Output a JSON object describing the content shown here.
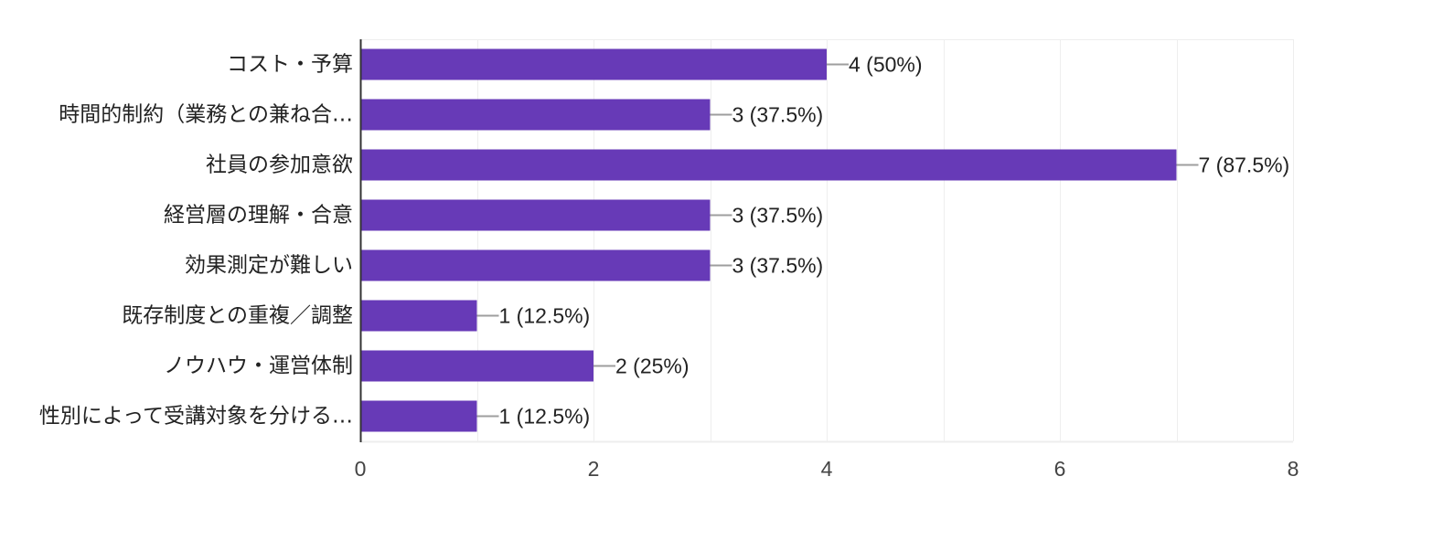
{
  "chart_data": {
    "type": "bar",
    "orientation": "horizontal",
    "title": "",
    "xlabel": "",
    "ylabel": "",
    "xlim": [
      0,
      8
    ],
    "x_ticks": [
      0,
      2,
      4,
      6,
      8
    ],
    "grid": true,
    "categories": [
      "コスト・予算",
      "時間的制約（業務との兼ね合…",
      "社員の参加意欲",
      "経営層の理解・合意",
      "効果測定が難しい",
      "既存制度との重複／調整",
      "ノウハウ・運営体制",
      "性別によって受講対象を分ける…"
    ],
    "values": [
      4,
      3,
      7,
      3,
      3,
      1,
      2,
      1
    ],
    "data_labels": [
      "4 (50%)",
      "3 (37.5%)",
      "7 (87.5%)",
      "3 (37.5%)",
      "3 (37.5%)",
      "1 (12.5%)",
      "2 (25%)",
      "1 (12.5%)"
    ],
    "colors": {
      "bar": "#673ab7",
      "axis": "#333333",
      "grid": "#eeeeee",
      "leader": "#9e9e9e"
    }
  }
}
